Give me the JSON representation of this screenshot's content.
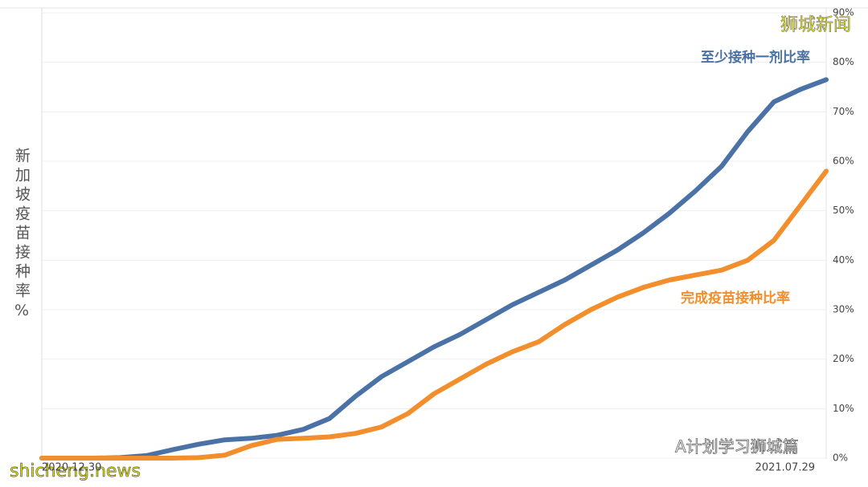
{
  "chart_data": {
    "type": "line",
    "y_label": "新加坡疫苗接种率%",
    "categories": [
      "2020.12.30",
      null,
      null,
      null,
      null,
      null,
      null,
      null,
      null,
      null,
      null,
      null,
      null,
      null,
      null,
      null,
      null,
      null,
      null,
      null,
      null,
      null,
      null,
      null,
      null,
      null,
      null,
      null,
      null,
      null,
      "2021.07.29"
    ],
    "series": [
      {
        "name": "至少接种一剂比率",
        "color": "#4a72a6",
        "values": [
          0,
          0,
          0,
          0.1,
          0.5,
          1.7,
          2.8,
          3.7,
          4.0,
          4.6,
          5.8,
          8,
          12.5,
          16.5,
          19.5,
          22.5,
          25,
          28,
          31,
          33.5,
          36,
          39,
          42,
          45.5,
          49.5,
          54,
          59,
          66,
          72,
          74.5,
          76.5
        ]
      },
      {
        "name": "完成疫苗接种比率",
        "color": "#f28e2b",
        "values": [
          0,
          0,
          0,
          0,
          0,
          0,
          0.1,
          0.6,
          2.5,
          3.8,
          4.0,
          4.3,
          5.0,
          6.3,
          9.0,
          13.0,
          16,
          19,
          21.5,
          23.5,
          27,
          30,
          32.5,
          34.5,
          36,
          37,
          38,
          40,
          44,
          51,
          58
        ]
      }
    ],
    "ylim": [
      0,
      90
    ],
    "yticks": [
      {
        "value": 0,
        "label": "0%"
      },
      {
        "value": 10,
        "label": "10%"
      },
      {
        "value": 20,
        "label": "20%"
      },
      {
        "value": 30,
        "label": "30%"
      },
      {
        "value": 40,
        "label": "40%"
      },
      {
        "value": 50,
        "label": "50%"
      },
      {
        "value": 60,
        "label": "60%"
      },
      {
        "value": 70,
        "label": "70%"
      },
      {
        "value": 80,
        "label": "80%"
      },
      {
        "value": 90,
        "label": "90%"
      }
    ],
    "grid": true,
    "annotations": [
      "狮城新闻",
      "A计划学习狮城篇",
      "shicheng.news"
    ]
  }
}
